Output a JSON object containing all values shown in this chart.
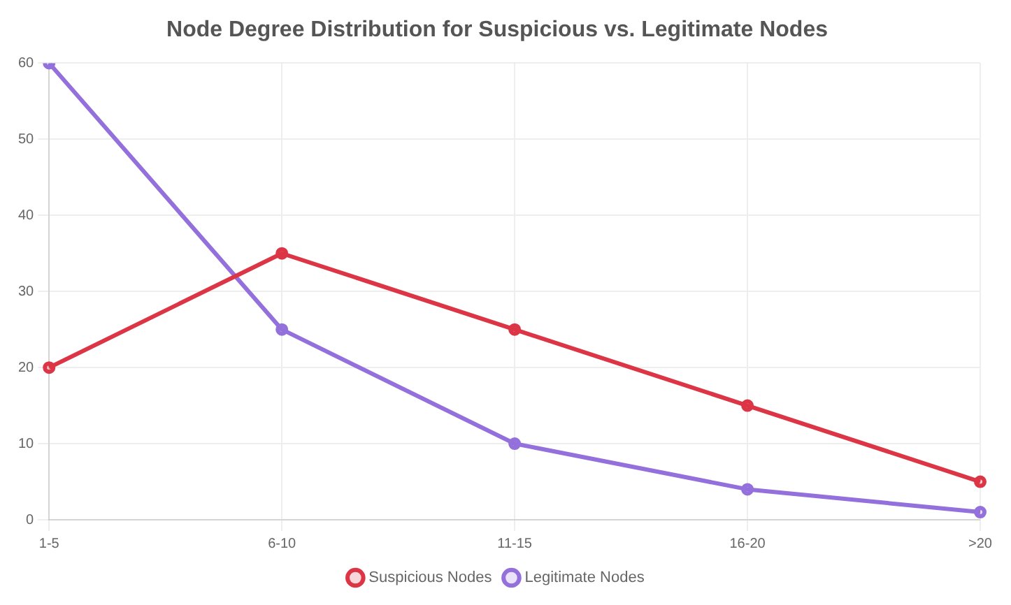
{
  "chart_data": {
    "type": "line",
    "title": "Node Degree Distribution for Suspicious vs. Legitimate Nodes",
    "categories": [
      "1-5",
      "6-10",
      "11-15",
      "16-20",
      ">20"
    ],
    "series": [
      {
        "name": "Suspicious Nodes",
        "color": "#dc3545",
        "values": [
          20,
          35,
          25,
          15,
          5
        ]
      },
      {
        "name": "Legitimate Nodes",
        "color": "#9370db",
        "values": [
          60,
          25,
          10,
          4,
          1
        ]
      }
    ],
    "ylim": [
      0,
      60
    ],
    "yticks": [
      0,
      10,
      20,
      30,
      40,
      50,
      60
    ],
    "grid": true,
    "legend": "bottom",
    "marker": "circle",
    "line_style": "solid"
  }
}
